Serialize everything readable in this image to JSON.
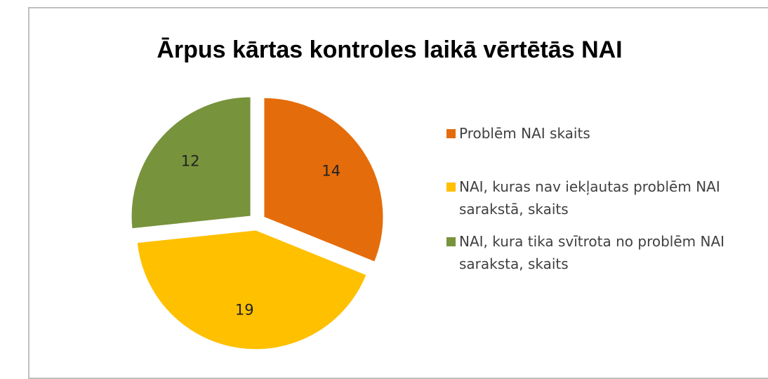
{
  "chart_data": {
    "type": "pie",
    "title": "Ārpus kārtas kontroles laikā vērtētās NAI",
    "categories": [
      "Problēm NAI skaits",
      "NAI, kuras nav iekļautas problēm NAI sarakstā, skaits",
      "NAI, kura tika svītrota no problēm NAI saraksta, skaits"
    ],
    "values": [
      14,
      19,
      12
    ],
    "colors": [
      "#e46c0a",
      "#ffc000",
      "#77933c"
    ],
    "legend": "right"
  }
}
